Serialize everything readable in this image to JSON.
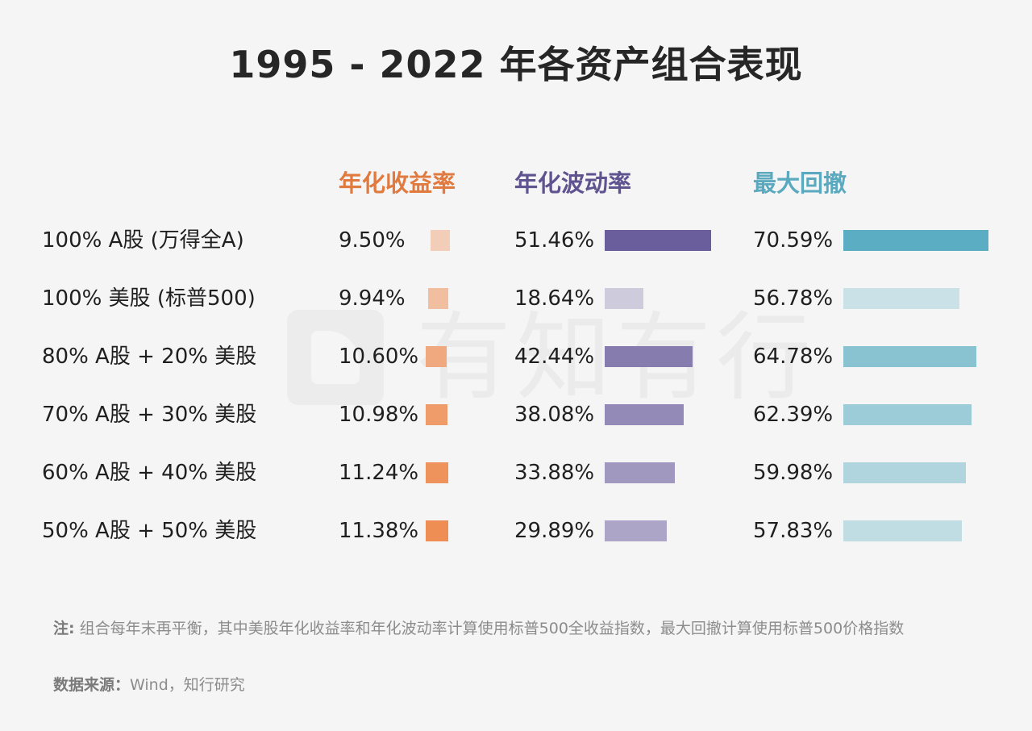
{
  "title": "1995 - 2022 年各资产组合表现",
  "watermark": "有知有行",
  "note_label": "注:",
  "note_text": "组合每年末再平衡，其中美股年化收益率和年化波动率计算使用标普500全收益指数，最大回撤计算使用标普500价格指数",
  "source_label": "数据来源：",
  "source_text": "Wind，知行研究",
  "colors": {
    "return_header": "#e07a3f",
    "volatility_header": "#5f548f",
    "drawdown_header": "#5aa9bf",
    "return_bar": "#ee8e55",
    "volatility_bar": "#6a5e9d",
    "drawdown_bar": "#5aadc3"
  },
  "chart_data": {
    "type": "table",
    "columns": [
      "年化收益率",
      "年化波动率",
      "最大回撤"
    ],
    "rows": [
      {
        "label": "100% A股 (万得全A)",
        "return": 9.5,
        "volatility": 51.46,
        "drawdown": 70.59,
        "return_text": "9.50%",
        "volatility_text": "51.46%",
        "drawdown_text": "70.59%"
      },
      {
        "label": "100% 美股 (标普500)",
        "return": 9.94,
        "volatility": 18.64,
        "drawdown": 56.78,
        "return_text": "9.94%",
        "volatility_text": "18.64%",
        "drawdown_text": "56.78%"
      },
      {
        "label": "80% A股  + 20% 美股",
        "return": 10.6,
        "volatility": 42.44,
        "drawdown": 64.78,
        "return_text": "10.60%",
        "volatility_text": "42.44%",
        "drawdown_text": "64.78%"
      },
      {
        "label": "70% A股  + 30% 美股",
        "return": 10.98,
        "volatility": 38.08,
        "drawdown": 62.39,
        "return_text": "10.98%",
        "volatility_text": "38.08%",
        "drawdown_text": "62.39%"
      },
      {
        "label": "60% A股  + 40% 美股",
        "return": 11.24,
        "volatility": 33.88,
        "drawdown": 59.98,
        "return_text": "11.24%",
        "volatility_text": "33.88%",
        "drawdown_text": "59.98%"
      },
      {
        "label": "50% A股  + 50% 美股",
        "return": 11.38,
        "volatility": 29.89,
        "drawdown": 57.83,
        "return_text": "11.38%",
        "volatility_text": "29.89%",
        "drawdown_text": "57.83%"
      }
    ]
  }
}
